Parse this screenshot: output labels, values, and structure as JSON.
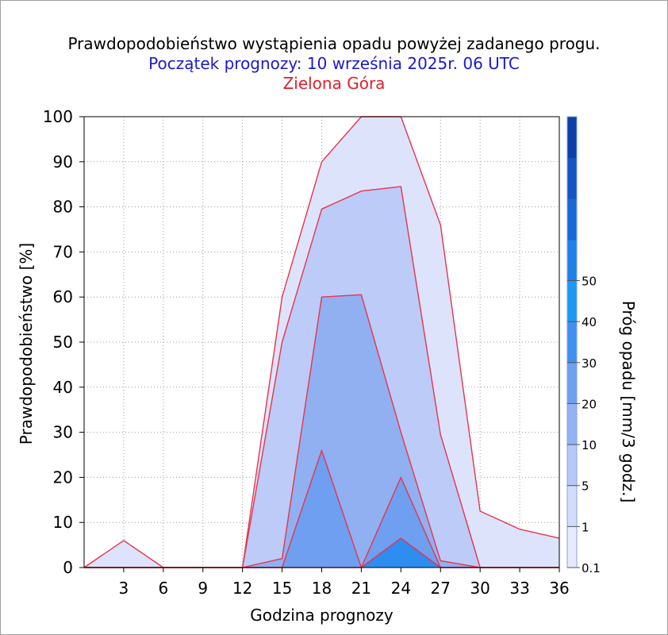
{
  "titles": {
    "line1": "Prawdopodobieństwo wystąpienia opadu powyżej zadanego progu.",
    "line2": "Początek prognozy: 10 września 2025r. 06 UTC",
    "line3": "Zielona Góra"
  },
  "colors": {
    "title1": "#000000",
    "title2": "#1a1acc",
    "title3": "#e0202a",
    "outline": "#e8344c"
  },
  "chart_data": {
    "type": "area",
    "xlabel": "Godzina prognozy",
    "ylabel": "Prawdopodobieństwo [%]",
    "xlim": [
      0,
      36
    ],
    "ylim": [
      0,
      100
    ],
    "x": [
      0,
      3,
      6,
      9,
      12,
      15,
      18,
      21,
      24,
      27,
      30,
      33,
      36
    ],
    "x_ticks": [
      3,
      6,
      9,
      12,
      15,
      18,
      21,
      24,
      27,
      30,
      33,
      36
    ],
    "y_ticks": [
      0,
      10,
      20,
      30,
      40,
      50,
      60,
      70,
      80,
      90,
      100
    ],
    "grid": true,
    "series": [
      {
        "name": "0.1",
        "color": "#dde3fb",
        "values": [
          0,
          6,
          0,
          0,
          0,
          60,
          90,
          100,
          100,
          76,
          12.5,
          8.5,
          6.5
        ]
      },
      {
        "name": "1",
        "color": "#bccbf7",
        "values": [
          0,
          0,
          0,
          0,
          0,
          50,
          79.5,
          83.5,
          84.5,
          29.5,
          0,
          0,
          0
        ]
      },
      {
        "name": "5",
        "color": "#90b0f2",
        "values": [
          0,
          0,
          0,
          0,
          0,
          2,
          60,
          60.5,
          30,
          1.5,
          0,
          0,
          0
        ]
      },
      {
        "name": "10",
        "color": "#6e9ff0",
        "values": [
          0,
          0,
          0,
          0,
          0,
          0,
          26,
          0,
          20,
          0,
          0,
          0,
          0
        ]
      },
      {
        "name": "20",
        "color": "#2f8cf0",
        "values": [
          0,
          0,
          0,
          0,
          0,
          0,
          0,
          0,
          6.5,
          0,
          0,
          0,
          0
        ]
      }
    ],
    "colorbar": {
      "label": "Próg opadu [mm/3 godz.]",
      "labels": [
        "0.1",
        "1",
        "5",
        "10",
        "20",
        "30",
        "40",
        "50"
      ],
      "bands": [
        "#e6eafc",
        "#d2dcf9",
        "#b7c8f6",
        "#94b3f3",
        "#6ea0f0",
        "#3f8ff0",
        "#1a9af5",
        "#1e82e8",
        "#1868d6",
        "#1455c4",
        "#0d3fa8"
      ]
    }
  }
}
